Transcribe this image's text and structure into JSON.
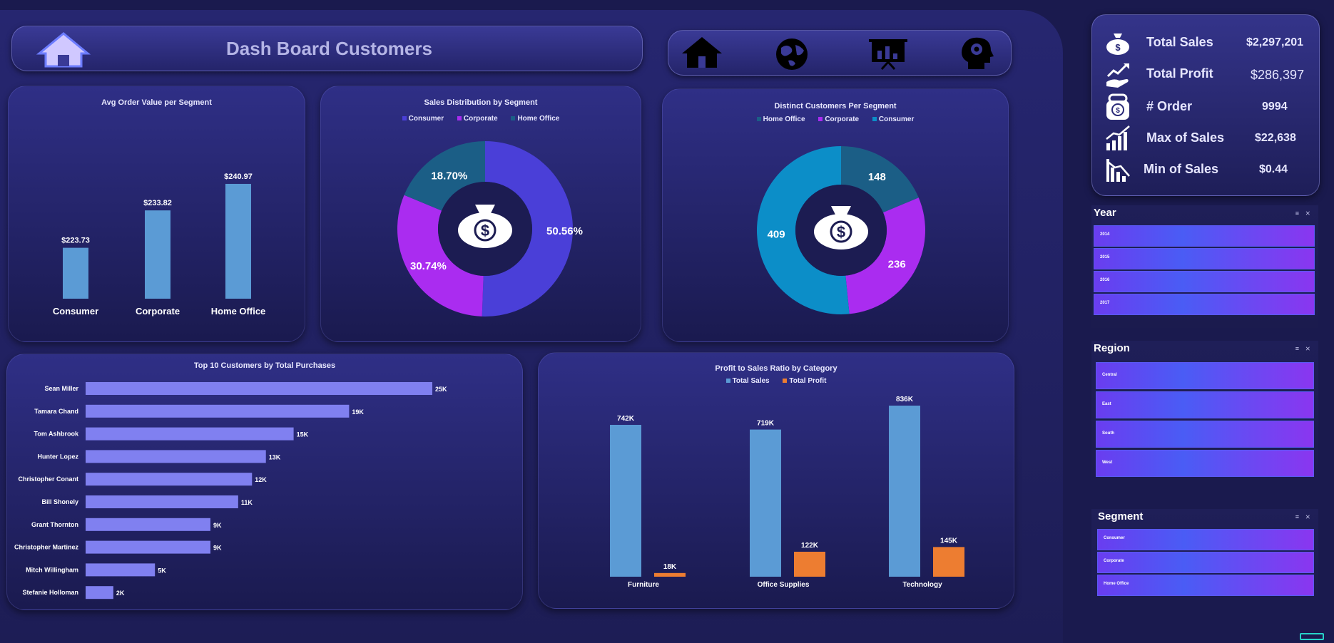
{
  "header": {
    "title": "Dash Board Customers"
  },
  "nav": {
    "icons": [
      "home-icon",
      "globe-icon",
      "presentation-icon",
      "head-gear-icon"
    ]
  },
  "kpis": [
    {
      "label": "Total Sales",
      "value": "$2,297,201",
      "icon": "money-bag-icon"
    },
    {
      "label": "Total Profit",
      "value": "$286,397",
      "icon": "profit-hand-icon"
    },
    {
      "label": "# Order",
      "value": "9994",
      "icon": "safe-money-icon"
    },
    {
      "label": "Max of Sales",
      "value": "$22,638",
      "icon": "chart-up-icon"
    },
    {
      "label": "Min of Sales",
      "value": "$0.44",
      "icon": "chart-down-icon"
    }
  ],
  "avg_order": {
    "title": "Avg Order Value per Segment",
    "labels": [
      "$223.73",
      "$233.82",
      "$240.97"
    ]
  },
  "sales_dist": {
    "title": "Sales Distribution by Segment",
    "legend": [
      "Consumer",
      "Corporate",
      "Home Office"
    ],
    "labels": [
      "50.56%",
      "30.74%",
      "18.70%"
    ]
  },
  "distinct_customers": {
    "title": "Distinct Customers Per Segment",
    "legend": [
      "Home Office",
      "Corporate",
      "Consumer"
    ],
    "labels": [
      "148",
      "236",
      "409"
    ]
  },
  "top_customers": {
    "title": "Top 10 Customers by Total Purchases",
    "value_labels": [
      "25K",
      "19K",
      "15K",
      "13K",
      "12K",
      "11K",
      "9K",
      "9K",
      "5K",
      "2K"
    ]
  },
  "profit_ratio": {
    "title": "Profit to Sales Ratio by Category",
    "legend": [
      "Total Sales",
      "Total Profit"
    ],
    "sales_labels": [
      "742K",
      "719K",
      "836K"
    ],
    "profit_labels": [
      "18K",
      "122K",
      "145K"
    ]
  },
  "slicers": {
    "year": {
      "title": "Year",
      "tools": "≡ ⨯",
      "items": [
        "2014",
        "2015",
        "2016",
        "2017"
      ]
    },
    "region": {
      "title": "Region",
      "tools": "≡ ⨯",
      "items": [
        "Central",
        "East",
        "South",
        "West"
      ]
    },
    "segment": {
      "title": "Segment",
      "tools": "≡ ⨯",
      "items": [
        "Consumer",
        "Corporate",
        "Home Office"
      ]
    }
  },
  "colors": {
    "bar_blue": "#5b9bd5",
    "top_bar": "#8080f0",
    "consumer": "#4a3fd8",
    "corporate": "#aa2cf0",
    "home_office": "#1b5e86",
    "consumer_cyan": "#0c8ec8",
    "profit_orange": "#ed7d31"
  },
  "chart_data": [
    {
      "type": "bar",
      "title": "Avg Order Value per Segment",
      "categories": [
        "Consumer",
        "Corporate",
        "Home Office"
      ],
      "values": [
        223.73,
        233.82,
        240.97
      ],
      "ylim": [
        210,
        245
      ]
    },
    {
      "type": "pie",
      "title": "Sales Distribution by Segment",
      "categories": [
        "Consumer",
        "Corporate",
        "Home Office"
      ],
      "values": [
        50.56,
        30.74,
        18.7
      ],
      "legend": "top"
    },
    {
      "type": "pie",
      "title": "Distinct Customers Per Segment",
      "categories": [
        "Home Office",
        "Corporate",
        "Consumer"
      ],
      "values": [
        148,
        236,
        409
      ],
      "legend": "top"
    },
    {
      "type": "bar",
      "title": "Top 10 Customers by Total Purchases",
      "categories": [
        "Sean Miller",
        "Tamara Chand",
        "Tom Ashbrook",
        "Hunter Lopez",
        "Christopher Conant",
        "Bill Shonely",
        "Grant Thornton",
        "Christopher Martinez",
        "Mitch Willingham",
        "Stefanie Holloman"
      ],
      "values": [
        25000,
        19000,
        15000,
        13000,
        12000,
        11000,
        9000,
        9000,
        5000,
        2000
      ],
      "xlim": [
        0,
        25000
      ]
    },
    {
      "type": "bar",
      "title": "Profit to Sales Ratio by Category",
      "categories": [
        "Furniture",
        "Office Supplies",
        "Technology"
      ],
      "series": [
        {
          "name": "Total Sales",
          "values": [
            742000,
            719000,
            836000
          ]
        },
        {
          "name": "Total Profit",
          "values": [
            18000,
            122000,
            145000
          ]
        }
      ],
      "ylim": [
        0,
        836000
      ],
      "legend": "top"
    }
  ]
}
